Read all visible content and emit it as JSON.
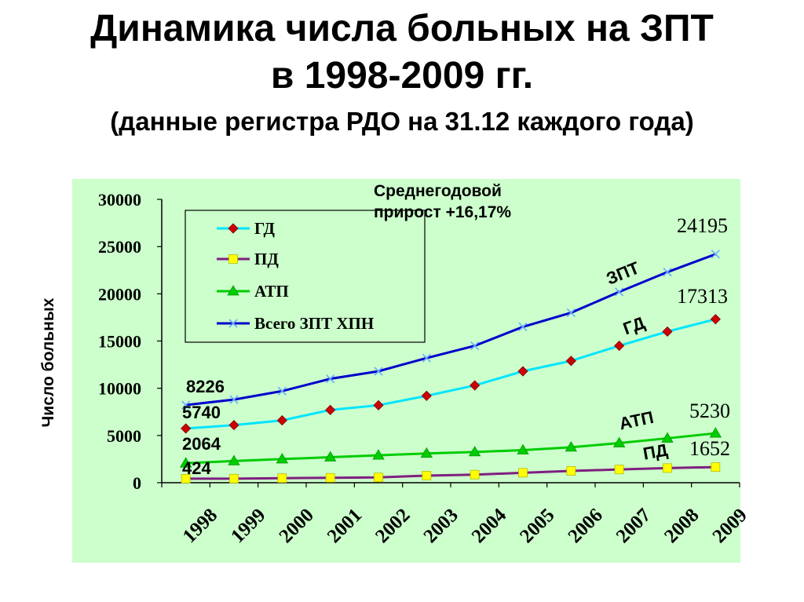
{
  "slide": {
    "title_line1": "Динамика числа больных на ЗПТ",
    "title_line2": "в 1998-2009 гг.",
    "subtitle": "(данные регистра РДО на 31.12 каждого года)"
  },
  "chart_data": {
    "type": "line",
    "ylabel": "Число больных",
    "ylim": [
      0,
      30000
    ],
    "yticks": [
      "0",
      "5000",
      "10000",
      "15000",
      "20000",
      "25000",
      "30000"
    ],
    "categories": [
      "1998",
      "1999",
      "2000",
      "2001",
      "2002",
      "2003",
      "2004",
      "2005",
      "2006",
      "2007",
      "2008",
      "2009"
    ],
    "legend_position": "top-left",
    "grid": false,
    "annotation": "Среднегодовой прирост +16,17%",
    "series": [
      {
        "name": "ГД",
        "color": "#00e5ff",
        "marker_color": "#cc0000",
        "marker": "diamond",
        "values": [
          5740,
          6100,
          6600,
          7700,
          8200,
          9200,
          10300,
          11800,
          12900,
          14500,
          16000,
          17313
        ]
      },
      {
        "name": "ПД",
        "color": "#7f1f7f",
        "marker_color": "#ffff00",
        "marker": "square",
        "values": [
          424,
          430,
          480,
          520,
          560,
          750,
          850,
          1050,
          1250,
          1400,
          1550,
          1652
        ]
      },
      {
        "name": "АТП",
        "color": "#00cc00",
        "marker_color": "#00cc00",
        "marker": "triangle",
        "values": [
          2064,
          2300,
          2500,
          2700,
          2900,
          3100,
          3250,
          3450,
          3750,
          4200,
          4700,
          5230
        ]
      },
      {
        "name": "Всего ЗПТ ХПН",
        "color": "#0000cc",
        "marker_color": "#66aaff",
        "marker": "x",
        "values": [
          8226,
          8800,
          9700,
          11000,
          11800,
          13200,
          14500,
          16500,
          18000,
          20200,
          22300,
          24195
        ]
      }
    ],
    "data_labels": {
      "start": [
        "8226",
        "5740",
        "2064",
        "424"
      ],
      "end": [
        "24195",
        "17313",
        "5230",
        "1652"
      ]
    },
    "series_tags": [
      "ЗПТ",
      "ГД",
      "АТП",
      "ПД"
    ],
    "colors": {
      "plot_bg": "#ccffcc"
    }
  }
}
